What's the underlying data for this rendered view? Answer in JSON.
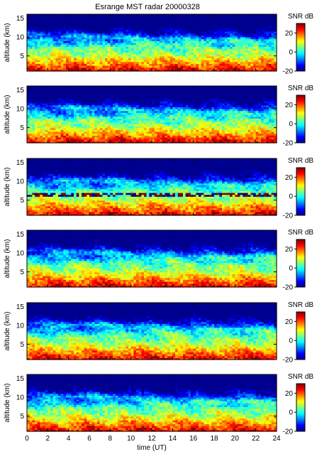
{
  "figure_title": "Esrange MST radar 20000328",
  "colors": {
    "jet": [
      "#00008f",
      "#0000ff",
      "#0080ff",
      "#00ffff",
      "#80ff80",
      "#ffff00",
      "#ff8000",
      "#ff0000",
      "#800000"
    ]
  },
  "chart_data": [
    {
      "type": "heatmap",
      "panel": 1,
      "ylabel": "altitude (km)",
      "xlim": [
        0,
        24
      ],
      "ylim": [
        1,
        16
      ],
      "yticks": [
        5,
        10,
        15
      ],
      "colorbar": {
        "label": "SNR dB",
        "range": [
          -20,
          30
        ],
        "ticks": [
          -20,
          0,
          20
        ]
      },
      "grid": false
    },
    {
      "type": "heatmap",
      "panel": 2,
      "ylabel": "altitude (km)",
      "xlim": [
        0,
        24
      ],
      "ylim": [
        1,
        16
      ],
      "yticks": [
        5,
        10,
        15
      ],
      "colorbar": {
        "label": "SNR dB",
        "range": [
          -20,
          30
        ],
        "ticks": [
          -20,
          0,
          20
        ]
      },
      "grid": false
    },
    {
      "type": "heatmap",
      "panel": 3,
      "ylabel": "altitude (km)",
      "xlim": [
        0,
        24
      ],
      "ylim": [
        1,
        16
      ],
      "yticks": [
        5,
        10,
        15
      ],
      "colorbar": {
        "label": "SNR dB",
        "range": [
          -20,
          30
        ],
        "ticks": [
          -20,
          0,
          20
        ]
      },
      "grid": false
    },
    {
      "type": "heatmap",
      "panel": 4,
      "ylabel": "altitude (km)",
      "xlim": [
        0,
        24
      ],
      "ylim": [
        1,
        16
      ],
      "yticks": [
        5,
        10,
        15
      ],
      "colorbar": {
        "label": "SNR dB",
        "range": [
          -20,
          30
        ],
        "ticks": [
          -20,
          0,
          20
        ]
      },
      "grid": false
    },
    {
      "type": "heatmap",
      "panel": 5,
      "ylabel": "altitude (km)",
      "xlim": [
        0,
        24
      ],
      "ylim": [
        1,
        16
      ],
      "yticks": [
        5,
        10,
        15
      ],
      "colorbar": {
        "label": "SNR dB",
        "range": [
          -20,
          30
        ],
        "ticks": [
          -20,
          0,
          20
        ]
      },
      "grid": false
    },
    {
      "type": "heatmap",
      "panel": 6,
      "ylabel": "altitude (km)",
      "xlabel": "time (UT)",
      "xlim": [
        0,
        24
      ],
      "ylim": [
        1,
        16
      ],
      "xticks": [
        0,
        2,
        4,
        6,
        8,
        10,
        12,
        14,
        16,
        18,
        20,
        22,
        24
      ],
      "yticks": [
        5,
        10,
        15
      ],
      "colorbar": {
        "label": "SNR dB",
        "range": [
          -20,
          30
        ],
        "ticks": [
          -20,
          0,
          20
        ]
      },
      "grid": false
    }
  ]
}
